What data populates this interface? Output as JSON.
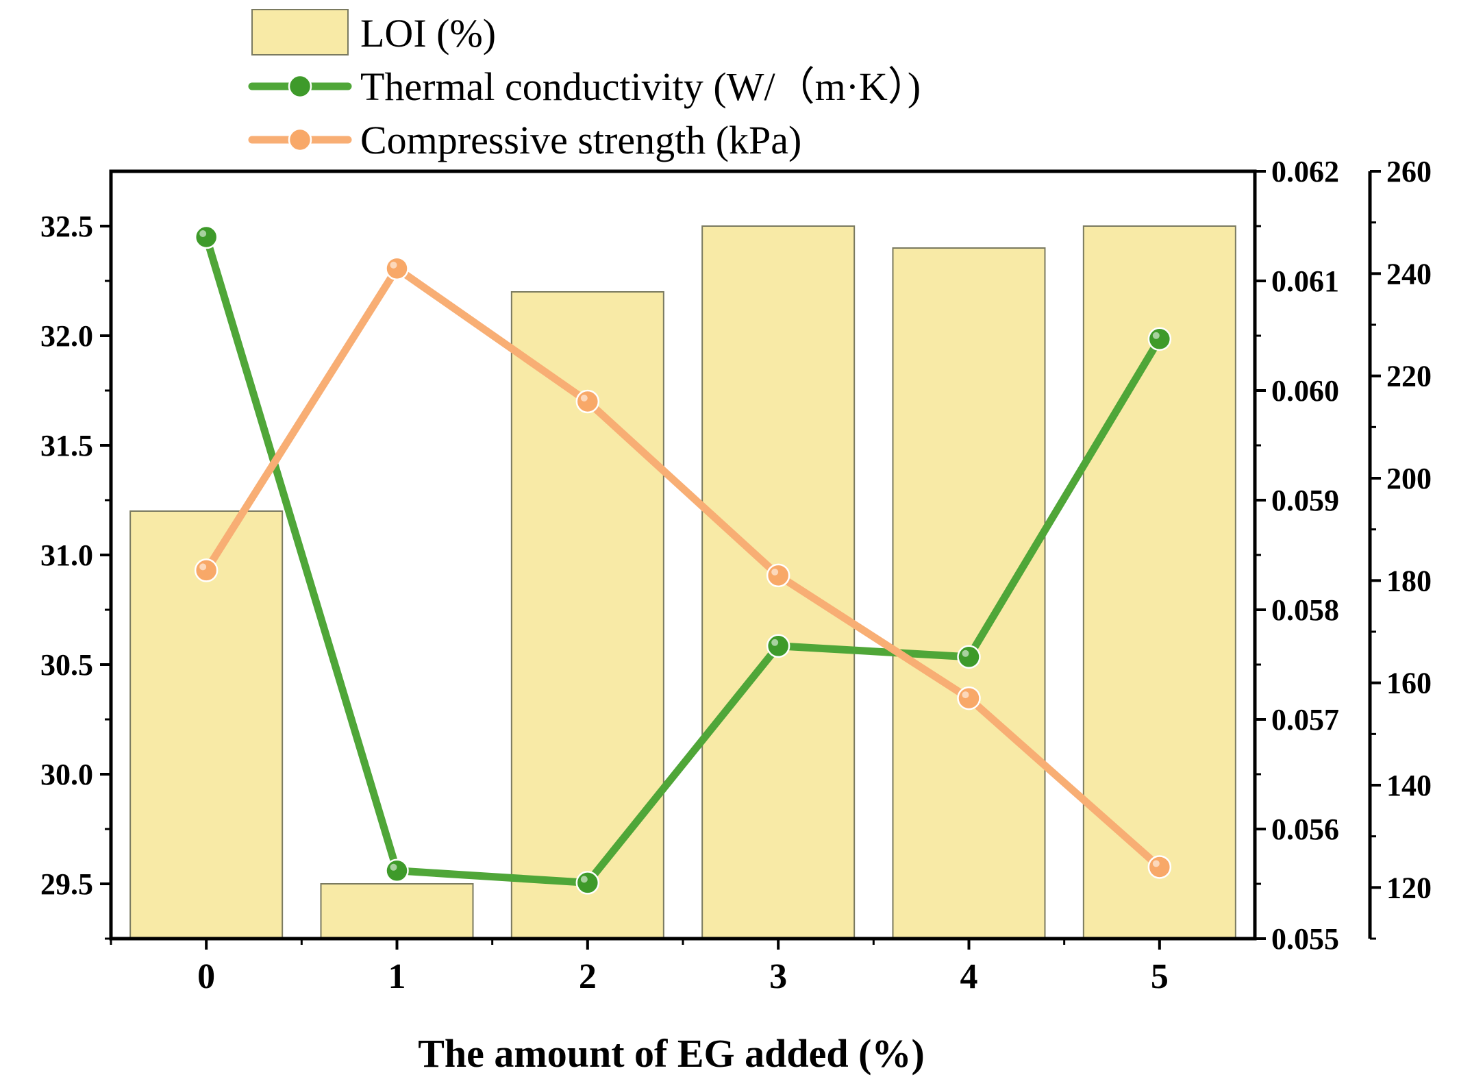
{
  "chart_data": {
    "type": "bar",
    "categories": [
      "0",
      "1",
      "2",
      "3",
      "4",
      "5"
    ],
    "xlabel": "The amount of EG added (%)",
    "series": [
      {
        "name": "LOI (%)",
        "kind": "bar",
        "axis": "left",
        "color": "#f8eaa6",
        "edge_color": "#7a7a60",
        "values": [
          31.2,
          29.5,
          32.2,
          32.5,
          32.4,
          32.5
        ]
      },
      {
        "name": "Thermal conductivity (W/（m·K）)",
        "kind": "line",
        "axis": "right1",
        "color": "#4fa638",
        "marker_color": "#3e9a2a",
        "values": [
          0.0614,
          0.05562,
          0.05551,
          0.05767,
          0.05757,
          0.06047
        ]
      },
      {
        "name": "Compressive strength (kPa)",
        "kind": "line",
        "axis": "right2",
        "color": "#f8ae74",
        "marker_color": "#f8a868",
        "values": [
          182,
          241,
          215,
          181,
          157,
          124
        ]
      }
    ],
    "axes": {
      "left": {
        "ylim": [
          29.25,
          32.75
        ],
        "ticks": [
          29.5,
          30.0,
          30.5,
          31.0,
          31.5,
          32.0,
          32.5
        ],
        "tick_labels": [
          "29.5",
          "30.0",
          "30.5",
          "31.0",
          "31.5",
          "32.0",
          "32.5"
        ]
      },
      "right1": {
        "ylim": [
          0.055,
          0.062
        ],
        "ticks": [
          0.055,
          0.056,
          0.057,
          0.058,
          0.059,
          0.06,
          0.061,
          0.062
        ],
        "tick_labels": [
          "0.055",
          "0.056",
          "0.057",
          "0.058",
          "0.059",
          "0.060",
          "0.061",
          "0.062"
        ]
      },
      "right2": {
        "ylim": [
          110,
          260
        ],
        "ticks": [
          120,
          140,
          160,
          180,
          200,
          220,
          240,
          260
        ],
        "tick_labels": [
          "120",
          "140",
          "160",
          "180",
          "200",
          "220",
          "240",
          "260"
        ]
      }
    },
    "legend": {
      "placement": "top-left",
      "entries": [
        "LOI (%)",
        "Thermal conductivity (W/（m·K）)",
        "Compressive strength (kPa)"
      ]
    },
    "grid": false
  }
}
